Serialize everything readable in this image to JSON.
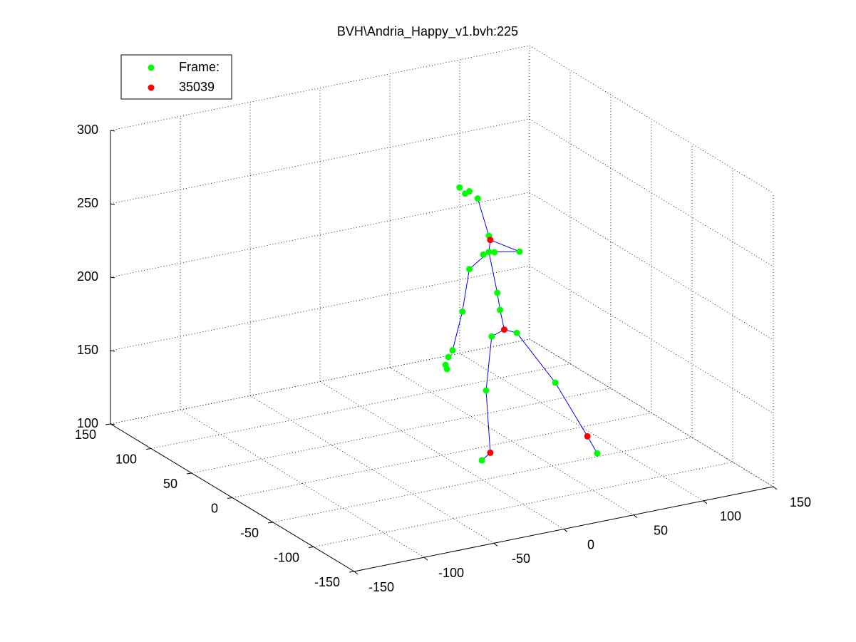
{
  "chart_data": {
    "type": "scatter3d",
    "title": "BVH\\Andria_Happy_v1.bvh:225",
    "xlim": [
      -150,
      150
    ],
    "xticks": [
      -150,
      -100,
      -50,
      0,
      50,
      100,
      150
    ],
    "ylim": [
      -150,
      150
    ],
    "yticks": [
      -150,
      -100,
      -50,
      0,
      50,
      100,
      150
    ],
    "zlim": [
      100,
      300
    ],
    "zticks": [
      100,
      150,
      200,
      250,
      300
    ],
    "grid": true,
    "legend": "upper-left",
    "series": [
      {
        "name": "Frame:",
        "color": "#00ff00",
        "x": [
          1,
          5,
          8,
          14,
          22,
          44,
          22,
          18,
          26,
          8,
          3,
          -4,
          -7,
          -9,
          -8,
          28,
          30,
          42,
          24,
          20,
          17,
          55,
          85
        ],
        "y": [
          -20,
          -20,
          -20,
          -20,
          -20,
          -20,
          -20,
          -20,
          -20,
          -20,
          -20,
          -20,
          -20,
          -20,
          -20,
          -20,
          -20,
          -20,
          -20,
          -20,
          -20,
          -45,
          -45
        ],
        "z": [
          289,
          284,
          285,
          279,
          252,
          237,
          241,
          240,
          240,
          232,
          204,
          179,
          175,
          170,
          167,
          212,
          200,
          182,
          183,
          147,
          100,
          154,
          100
        ]
      },
      {
        "name": "35039",
        "color": "#ff0000",
        "x": [
          23,
          33,
          23,
          78
        ],
        "y": [
          -20,
          -20,
          -20,
          -45
        ],
        "z": [
          249,
          186,
          104,
          113
        ]
      }
    ],
    "lines": [
      {
        "color": "#0000ff",
        "x": [
          14,
          22,
          23,
          22,
          8,
          3,
          -4
        ],
        "y": [
          -20,
          -20,
          -20,
          -20,
          -20,
          -20,
          -20
        ],
        "z": [
          279,
          252,
          249,
          241,
          232,
          204,
          179
        ]
      },
      {
        "color": "#0000ff",
        "x": [
          23,
          44,
          22
        ],
        "y": [
          -20,
          -20,
          -20
        ],
        "z": [
          249,
          237,
          241
        ]
      },
      {
        "color": "#0000ff",
        "x": [
          22,
          28,
          30,
          33,
          42,
          55,
          78,
          85
        ],
        "y": [
          -20,
          -20,
          -20,
          -20,
          -20,
          -45,
          -45,
          -45
        ],
        "z": [
          241,
          212,
          200,
          186,
          182,
          154,
          113,
          100
        ]
      },
      {
        "color": "#0000ff",
        "x": [
          33,
          24,
          20,
          23,
          17
        ],
        "y": [
          -20,
          -20,
          -20,
          -20,
          -20
        ],
        "z": [
          186,
          183,
          147,
          104,
          100
        ]
      }
    ]
  }
}
